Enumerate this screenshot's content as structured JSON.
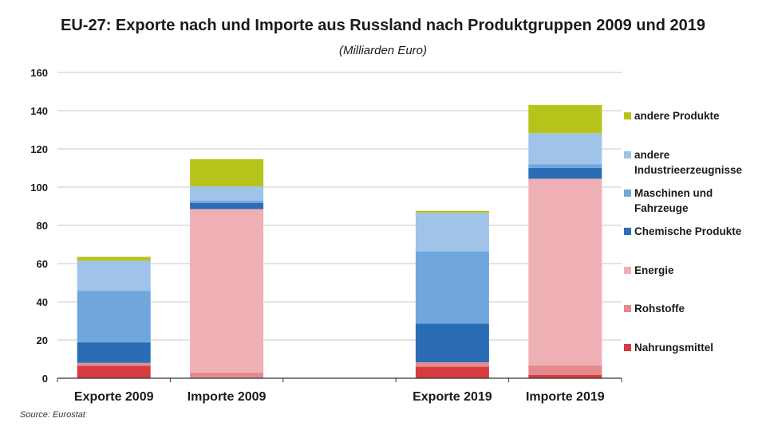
{
  "chart_data": {
    "type": "bar",
    "stacked": true,
    "title": "EU-27: Exporte nach und Importe aus Russland nach Produktgruppen 2009 und 2019",
    "subtitle": "(Milliarden Euro)",
    "source": "Source: Eurostat",
    "categories": [
      "Exporte 2009",
      "Importe 2009",
      "",
      "Exporte 2019",
      "Importe 2019"
    ],
    "ylim": [
      0,
      160
    ],
    "yticks": [
      "0",
      "20",
      "40",
      "60",
      "80",
      "100",
      "120",
      "140",
      "160"
    ],
    "grid": true,
    "legend_position": "right",
    "series": [
      {
        "name": "Nahrungsmittel",
        "color": "#d63b40",
        "values": [
          6.5,
          0.3,
          null,
          6.0,
          1.8
        ]
      },
      {
        "name": "Rohstoffe",
        "color": "#e48a8d",
        "values": [
          1.4,
          2.7,
          null,
          2.2,
          4.9
        ]
      },
      {
        "name": "Energie",
        "color": "#efb0b5",
        "values": [
          0.1,
          85.5,
          null,
          0.1,
          97.7
        ]
      },
      {
        "name": "Chemische Produkte",
        "color": "#2a6db5",
        "values": [
          10.8,
          3.2,
          null,
          20.3,
          5.7
        ]
      },
      {
        "name": "Maschinen und Fahrzeuge",
        "color": "#6fa6dc",
        "values": [
          27.0,
          1.3,
          null,
          37.8,
          1.9
        ]
      },
      {
        "name": "andere Industrieerzeugnisse",
        "color": "#9fc3e9",
        "values": [
          15.7,
          7.4,
          null,
          20.2,
          16.2
        ]
      },
      {
        "name": "andere Produkte",
        "color": "#b5c31a",
        "values": [
          2.0,
          14.2,
          null,
          1.0,
          14.8
        ]
      }
    ],
    "legend_lines": [
      [
        "andere Produkte"
      ],
      [
        "andere",
        "Industrieerzeugnisse"
      ],
      [
        "Maschinen und",
        "Fahrzeuge"
      ],
      [
        "Chemische Produkte"
      ],
      [
        "Energie"
      ],
      [
        "Rohstoffe"
      ],
      [
        "Nahrungsmittel"
      ]
    ]
  }
}
